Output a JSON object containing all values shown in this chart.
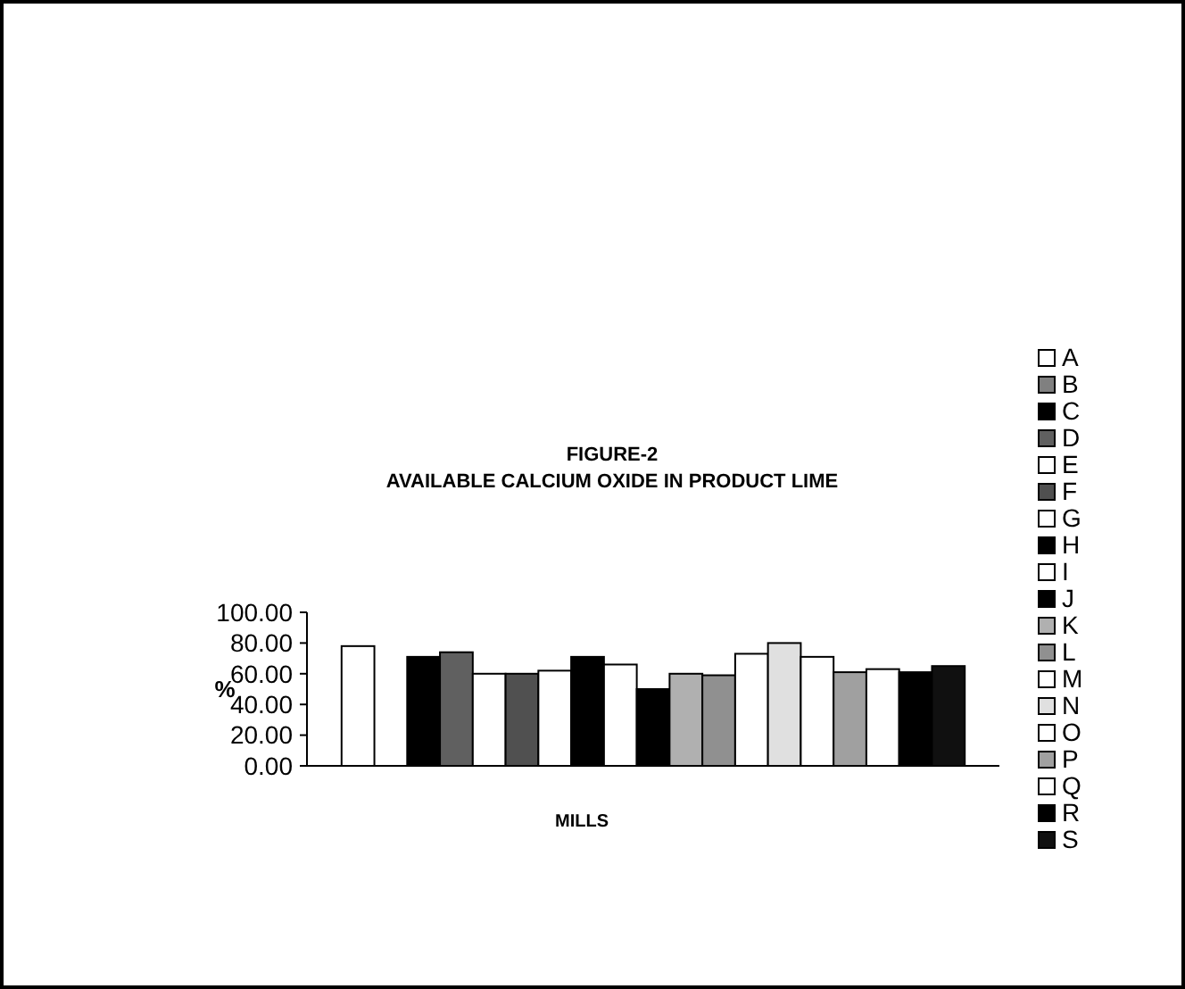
{
  "chart_data": {
    "type": "bar",
    "title": "FIGURE-2\nAVAILABLE CALCIUM OXIDE IN PRODUCT LIME",
    "xlabel": "MILLS",
    "ylabel": "%",
    "categories": [
      null
    ],
    "ylim": [
      0,
      100
    ],
    "yticks": [
      {
        "value": 0,
        "label": "0.00"
      },
      {
        "value": 20,
        "label": "20.00"
      },
      {
        "value": 40,
        "label": "40.00"
      },
      {
        "value": 60,
        "label": "60.00"
      },
      {
        "value": 80,
        "label": "80.00"
      },
      {
        "value": 100,
        "label": "100.00"
      }
    ],
    "grid": false,
    "legend": "right",
    "series": [
      {
        "name": "A",
        "color": "#ffffff",
        "values": [
          78
        ]
      },
      {
        "name": "B",
        "color": "#808080",
        "values": [
          null
        ]
      },
      {
        "name": "C",
        "color": "#000000",
        "values": [
          71
        ]
      },
      {
        "name": "D",
        "color": "#606060",
        "values": [
          74
        ]
      },
      {
        "name": "E",
        "color": "#ffffff",
        "values": [
          60
        ]
      },
      {
        "name": "F",
        "color": "#505050",
        "values": [
          60
        ]
      },
      {
        "name": "G",
        "color": "#ffffff",
        "values": [
          62
        ]
      },
      {
        "name": "H",
        "color": "#000000",
        "values": [
          71
        ]
      },
      {
        "name": "I",
        "color": "#ffffff",
        "values": [
          66
        ]
      },
      {
        "name": "J",
        "color": "#000000",
        "values": [
          50
        ]
      },
      {
        "name": "K",
        "color": "#b0b0b0",
        "values": [
          60
        ]
      },
      {
        "name": "L",
        "color": "#909090",
        "values": [
          59
        ]
      },
      {
        "name": "M",
        "color": "#ffffff",
        "values": [
          73
        ]
      },
      {
        "name": "N",
        "color": "#e0e0e0",
        "values": [
          80
        ]
      },
      {
        "name": "O",
        "color": "#ffffff",
        "values": [
          71
        ]
      },
      {
        "name": "P",
        "color": "#a0a0a0",
        "values": [
          61
        ]
      },
      {
        "name": "Q",
        "color": "#ffffff",
        "values": [
          63
        ]
      },
      {
        "name": "R",
        "color": "#000000",
        "values": [
          61
        ]
      },
      {
        "name": "S",
        "color": "#101010",
        "values": [
          65
        ]
      }
    ]
  }
}
